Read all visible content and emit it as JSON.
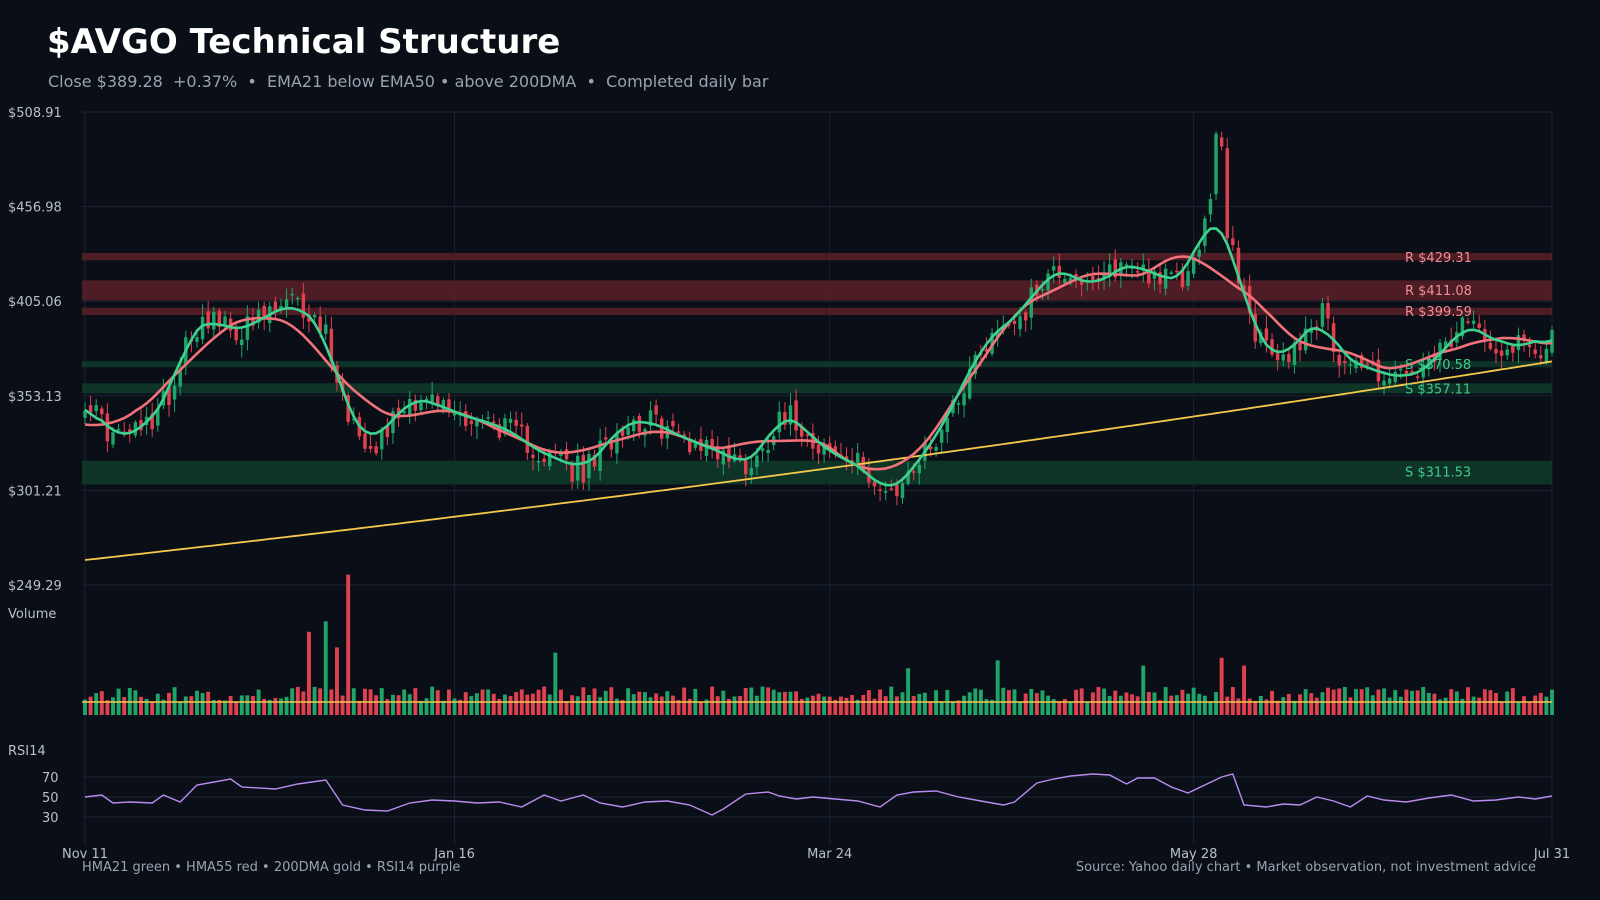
{
  "header": {
    "title": "$AVGO Technical Structure",
    "subtitle": "Close $389.28  +0.37%  •  EMA21 below EMA50 • above 200DMA  •  Completed daily bar"
  },
  "footer": {
    "legend": "HMA21 green • HMA55 red • 200DMA gold  •  RSI14 purple",
    "source": "Source: Yahoo daily chart • Market observation, not investment advice"
  },
  "colors": {
    "background": "#0a0e17",
    "up": "#1fa46a",
    "down": "#e0414f",
    "hma21": "#3fd18f",
    "hma55": "#f2727a",
    "dma200": "#f5c84c",
    "rsi": "#b98cf0",
    "resistance": "#5a1f27",
    "support": "#0f3b2c"
  },
  "chart_data": {
    "type": "candlestick",
    "price_axis": {
      "ticks": [
        "$508.91",
        "$456.98",
        "$405.06",
        "$353.13",
        "$301.21",
        "$249.29"
      ],
      "range": [
        249.29,
        508.91
      ]
    },
    "x_axis": {
      "ticks": [
        "Nov 11",
        "Jan 16",
        "Mar 24",
        "May 28",
        "Jul 31"
      ],
      "tick_days": [
        0,
        66,
        133,
        198,
        262
      ]
    },
    "closes_anchor": [
      [
        0,
        352
      ],
      [
        5,
        330
      ],
      [
        10,
        334
      ],
      [
        12,
        340
      ],
      [
        16,
        360
      ],
      [
        18,
        385
      ],
      [
        22,
        397
      ],
      [
        26,
        388
      ],
      [
        30,
        392
      ],
      [
        34,
        400
      ],
      [
        37,
        404
      ],
      [
        40,
        398
      ],
      [
        43,
        388
      ],
      [
        46,
        352
      ],
      [
        49,
        332
      ],
      [
        52,
        328
      ],
      [
        55,
        340
      ],
      [
        58,
        352
      ],
      [
        62,
        350
      ],
      [
        66,
        344
      ],
      [
        70,
        340
      ],
      [
        74,
        337
      ],
      [
        78,
        330
      ],
      [
        82,
        320
      ],
      [
        86,
        318
      ],
      [
        89,
        311
      ],
      [
        92,
        322
      ],
      [
        96,
        338
      ],
      [
        100,
        340
      ],
      [
        104,
        335
      ],
      [
        108,
        328
      ],
      [
        112,
        325
      ],
      [
        116,
        318
      ],
      [
        118,
        315
      ],
      [
        121,
        322
      ],
      [
        124,
        345
      ],
      [
        127,
        340
      ],
      [
        130,
        330
      ],
      [
        133,
        322
      ],
      [
        136,
        318
      ],
      [
        140,
        312
      ],
      [
        142,
        302
      ],
      [
        144,
        299
      ],
      [
        148,
        314
      ],
      [
        152,
        330
      ],
      [
        156,
        354
      ],
      [
        160,
        380
      ],
      [
        164,
        392
      ],
      [
        168,
        400
      ],
      [
        171,
        418
      ],
      [
        174,
        422
      ],
      [
        177,
        420
      ],
      [
        180,
        410
      ],
      [
        184,
        424
      ],
      [
        188,
        425
      ],
      [
        191,
        420
      ],
      [
        194,
        416
      ],
      [
        197,
        418
      ],
      [
        199,
        440
      ],
      [
        201,
        455
      ],
      [
        203,
        450
      ],
      [
        206,
        420
      ],
      [
        208,
        395
      ],
      [
        211,
        378
      ],
      [
        214,
        372
      ],
      [
        217,
        385
      ],
      [
        219,
        392
      ],
      [
        221,
        398
      ],
      [
        224,
        375
      ],
      [
        228,
        370
      ],
      [
        232,
        365
      ],
      [
        236,
        363
      ],
      [
        240,
        368
      ],
      [
        244,
        384
      ],
      [
        247,
        392
      ],
      [
        250,
        390
      ],
      [
        253,
        377
      ],
      [
        256,
        385
      ],
      [
        258,
        380
      ],
      [
        260,
        380
      ],
      [
        262,
        389.28
      ]
    ],
    "spikes": [
      [
        202,
        497
      ],
      [
        203,
        490
      ],
      [
        44,
        372
      ],
      [
        87,
        306
      ],
      [
        145,
        298
      ]
    ],
    "volume": {
      "label": "Volume",
      "spikes": [
        [
          40,
          3.2
        ],
        [
          43,
          3.6
        ],
        [
          45,
          2.6
        ],
        [
          47,
          5.4
        ],
        [
          84,
          2.4
        ],
        [
          147,
          1.8
        ],
        [
          163,
          2.1
        ],
        [
          189,
          1.9
        ],
        [
          203,
          2.2
        ],
        [
          207,
          1.9
        ]
      ]
    },
    "rsi": {
      "label": "RSI14",
      "ticks": [
        70,
        50,
        30
      ],
      "range": [
        10,
        90
      ],
      "values": [
        [
          0,
          50
        ],
        [
          3,
          52
        ],
        [
          5,
          44
        ],
        [
          8,
          45
        ],
        [
          12,
          44
        ],
        [
          14,
          52
        ],
        [
          17,
          45
        ],
        [
          20,
          62
        ],
        [
          26,
          68
        ],
        [
          28,
          60
        ],
        [
          34,
          58
        ],
        [
          38,
          63
        ],
        [
          43,
          67
        ],
        [
          46,
          42
        ],
        [
          50,
          37
        ],
        [
          54,
          36
        ],
        [
          58,
          44
        ],
        [
          62,
          47
        ],
        [
          66,
          46
        ],
        [
          70,
          44
        ],
        [
          74,
          45
        ],
        [
          78,
          40
        ],
        [
          82,
          52
        ],
        [
          85,
          46
        ],
        [
          89,
          52
        ],
        [
          92,
          44
        ],
        [
          96,
          40
        ],
        [
          100,
          45
        ],
        [
          104,
          46
        ],
        [
          108,
          42
        ],
        [
          112,
          32
        ],
        [
          114,
          38
        ],
        [
          118,
          53
        ],
        [
          122,
          55
        ],
        [
          124,
          51
        ],
        [
          127,
          48
        ],
        [
          130,
          50
        ],
        [
          134,
          48
        ],
        [
          138,
          46
        ],
        [
          142,
          40
        ],
        [
          145,
          52
        ],
        [
          148,
          55
        ],
        [
          152,
          56
        ],
        [
          156,
          50
        ],
        [
          160,
          46
        ],
        [
          164,
          42
        ],
        [
          166,
          45
        ],
        [
          170,
          64
        ],
        [
          173,
          68
        ],
        [
          176,
          71
        ],
        [
          180,
          73
        ],
        [
          183,
          72
        ],
        [
          186,
          63
        ],
        [
          188,
          69
        ],
        [
          191,
          69
        ],
        [
          194,
          60
        ],
        [
          197,
          54
        ],
        [
          200,
          62
        ],
        [
          203,
          70
        ],
        [
          205,
          73
        ],
        [
          207,
          42
        ],
        [
          211,
          40
        ],
        [
          214,
          43
        ],
        [
          217,
          42
        ],
        [
          220,
          50
        ],
        [
          223,
          46
        ],
        [
          226,
          40
        ],
        [
          229,
          51
        ],
        [
          232,
          47
        ],
        [
          236,
          45
        ],
        [
          240,
          49
        ],
        [
          244,
          52
        ],
        [
          248,
          46
        ],
        [
          252,
          47
        ],
        [
          256,
          50
        ],
        [
          259,
          48
        ],
        [
          262,
          51
        ]
      ]
    },
    "levels": [
      {
        "kind": "R",
        "value": 429.31,
        "label": "R $429.31",
        "band": [
          427.5,
          431.5
        ]
      },
      {
        "kind": "R",
        "value": 411.08,
        "label": "R $411.08",
        "band": [
          405.5,
          416.5
        ]
      },
      {
        "kind": "R",
        "value": 399.59,
        "label": "R $399.59",
        "band": [
          397.5,
          401.5
        ]
      },
      {
        "kind": "S",
        "value": 370.58,
        "label": "S $370.58",
        "band": [
          368.8,
          372.2
        ]
      },
      {
        "kind": "S",
        "value": 357.11,
        "label": "S $357.11",
        "band": [
          354.5,
          360
        ]
      },
      {
        "kind": "S",
        "value": 311.53,
        "label": "S $311.53",
        "band": [
          304.5,
          317.5
        ]
      }
    ],
    "dma200": {
      "start": 263,
      "end": 372
    },
    "grid": true
  }
}
